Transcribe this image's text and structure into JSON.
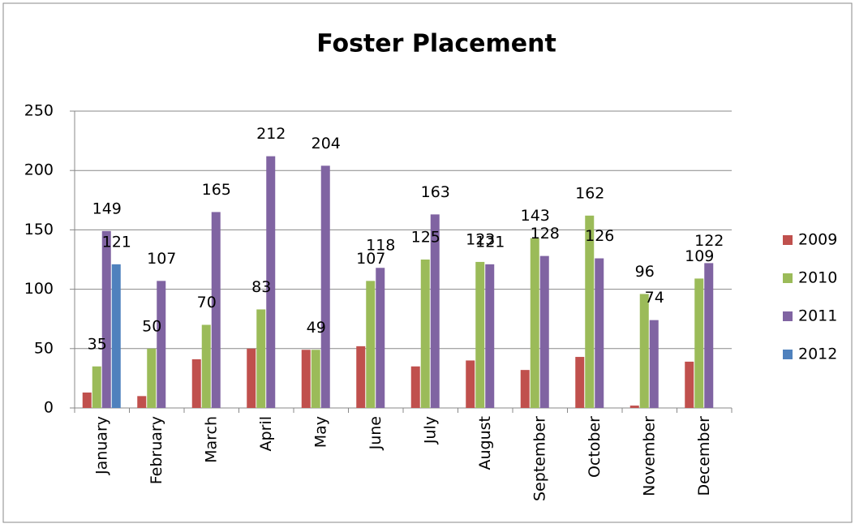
{
  "chart_data": {
    "type": "bar",
    "title": "Foster Placement",
    "categories": [
      "January",
      "February",
      "March",
      "April",
      "May",
      "June",
      "July",
      "August",
      "September",
      "October",
      "November",
      "December"
    ],
    "series": [
      {
        "name": "2009",
        "color": "#c0504d",
        "labels": false,
        "values": [
          13,
          10,
          41,
          50,
          49,
          52,
          35,
          40,
          32,
          43,
          2,
          39
        ]
      },
      {
        "name": "2010",
        "color": "#9bbb59",
        "labels": true,
        "values": [
          35,
          50,
          70,
          83,
          49,
          107,
          125,
          123,
          143,
          162,
          96,
          109
        ]
      },
      {
        "name": "2011",
        "color": "#8064a2",
        "labels": true,
        "values": [
          149,
          107,
          165,
          212,
          204,
          118,
          163,
          121,
          128,
          126,
          74,
          122
        ]
      },
      {
        "name": "2012",
        "color": "#4f81bd",
        "labels": true,
        "values": [
          121,
          null,
          null,
          null,
          null,
          null,
          null,
          null,
          null,
          null,
          null,
          null
        ]
      }
    ],
    "ylim": [
      0,
      250
    ],
    "yticks": [
      0,
      50,
      100,
      150,
      200,
      250
    ],
    "grid": true,
    "legend": "right"
  }
}
